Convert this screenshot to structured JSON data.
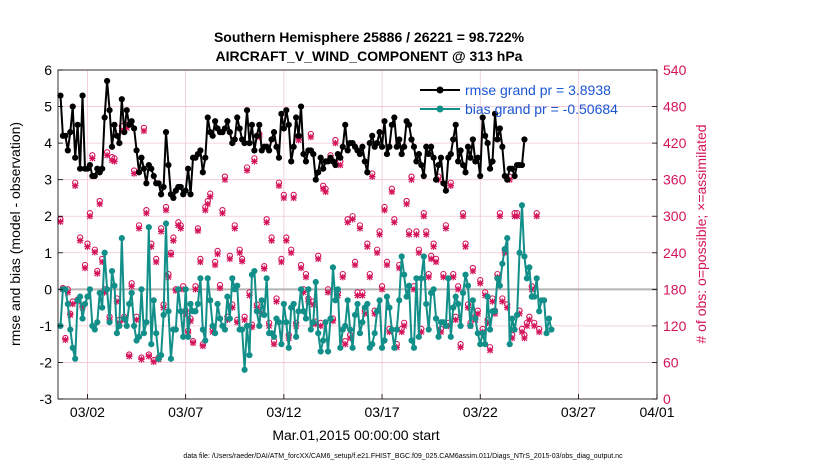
{
  "chart_data": {
    "type": "line",
    "title_line1": "Southern Hemisphere 25886 / 26221 = 98.722%",
    "title_line2": "AIRCRAFT_V_WIND_COMPONENT @ 313 hPa",
    "xlabel": "Mar.01,2015 00:00:00 start",
    "ylabel_left": "rmse and bias (model - observation)",
    "ylabel_right": "# of obs: o=possible; ×=assimilated",
    "footnote": "data file: /Users/raeder/DAI/ATM_forcXX/CAM6_setup/f.e21.FHIST_BGC.f09_025.CAM6assim.011/Diags_NTrS_2015-03/obs_diag_output.nc",
    "x_range": [
      0.5,
      31.0
    ],
    "x_ticks": [
      {
        "value": 2,
        "label": "03/02"
      },
      {
        "value": 7,
        "label": "03/07"
      },
      {
        "value": 12,
        "label": "03/12"
      },
      {
        "value": 17,
        "label": "03/17"
      },
      {
        "value": 22,
        "label": "03/22"
      },
      {
        "value": 27,
        "label": "03/27"
      },
      {
        "value": 31,
        "label": "04/01"
      }
    ],
    "y_left_range": [
      -3,
      6
    ],
    "y_left_ticks": [
      -3,
      -2,
      -1,
      0,
      1,
      2,
      3,
      4,
      5,
      6
    ],
    "y_right_range": [
      0,
      540
    ],
    "y_right_ticks": [
      0,
      60,
      120,
      180,
      240,
      300,
      360,
      420,
      480,
      540
    ],
    "x_step_days": 0.125,
    "x_start": 0.625,
    "legend": [
      {
        "label": "rmse grand pr = 3.8938",
        "color": "#000000"
      },
      {
        "label": "bias grand pr = -0.50684",
        "color": "#138f8a"
      }
    ],
    "colors": {
      "rmse": "#000000",
      "bias": "#138f8a",
      "obs": "#d4145a",
      "zero_line": "#b4b4b4",
      "grid": "#f2c6d6",
      "right_axis": "#d4145a"
    },
    "series": [
      {
        "name": "rmse",
        "values": [
          5.3,
          4.2,
          4.2,
          3.8,
          4.3,
          5.0,
          3.6,
          4.5,
          3.3,
          5.3,
          3.3,
          3.3,
          3.4,
          3.1,
          3.1,
          3.3,
          3.2,
          3.3,
          4.7,
          5.7,
          4.9,
          3.9,
          4.5,
          4.2,
          4.0,
          5.2,
          4.3,
          4.9,
          4.5,
          4.6,
          4.4,
          3.8,
          3.2,
          3.6,
          3.3,
          2.9,
          3.4,
          3.3,
          3.1,
          2.9,
          2.9,
          2.6,
          2.8,
          4.3,
          3.4,
          2.6,
          2.5,
          2.7,
          2.8,
          2.8,
          2.6,
          2.7,
          3.3,
          2.6,
          3.6,
          3.6,
          3.7,
          3.8,
          3.2,
          3.6,
          4.7,
          4.3,
          4.2,
          4.6,
          4.4,
          4.3,
          4.3,
          4.4,
          4.6,
          4.3,
          4.0,
          4.1,
          4.7,
          4.4,
          4.1,
          4.0,
          4.9,
          4.0,
          4.5,
          3.8,
          4.2,
          4.5,
          3.8,
          3.9,
          3.9,
          3.8,
          4.1,
          4.3,
          3.9,
          3.6,
          4.8,
          4.4,
          4.9,
          4.5,
          3.5,
          3.9,
          4.7,
          4.2,
          5.0,
          3.7,
          3.5,
          3.8,
          3.8,
          3.7,
          3.0,
          3.2,
          3.6,
          3.3,
          3.5,
          3.5,
          3.6,
          3.5,
          3.4,
          3.7,
          3.6,
          3.9,
          4.5,
          3.8,
          4.0,
          4.0,
          3.9,
          3.8,
          3.7,
          3.9,
          3.5,
          3.2,
          4.0,
          4.2,
          3.9,
          4.0,
          4.3,
          3.9,
          4.6,
          3.7,
          3.9,
          4.5,
          4.7,
          3.9,
          4.1,
          3.7,
          3.9,
          4.6,
          4.5,
          4.1,
          3.9,
          3.5,
          3.7,
          3.4,
          3.1,
          3.9,
          3.7,
          3.9,
          3.6,
          3.0,
          3.4,
          3.6,
          2.9,
          2.7,
          3.6,
          3.7,
          4.1,
          4.5,
          3.5,
          3.8,
          3.4,
          3.2,
          3.9,
          3.6,
          4.1,
          3.5,
          3.6,
          3.1,
          4.7,
          4.2,
          4.0,
          3.3,
          3.5,
          4.8,
          4.1,
          4.4,
          3.9,
          3.1,
          3.0,
          3.3,
          3.3,
          3.1,
          3.4,
          3.4,
          3.4,
          4.1
        ]
      },
      {
        "name": "bias",
        "values": [
          -1.0,
          0.0,
          0.0,
          -0.4,
          -1.1,
          -1.6,
          -1.9,
          -0.3,
          -0.2,
          -0.8,
          -0.4,
          -0.2,
          0.0,
          -1.0,
          -1.1,
          -0.9,
          -0.1,
          -0.5,
          1.0,
          0.0,
          -0.9,
          0.5,
          0.1,
          -1.2,
          -1.0,
          1.4,
          -0.8,
          -1.0,
          -0.4,
          -0.1,
          -1.0,
          -1.4,
          -1.3,
          0.0,
          -1.2,
          -0.9,
          1.7,
          -1.5,
          -0.3,
          -1.2,
          -1.9,
          -1.8,
          -0.7,
          1.8,
          -0.6,
          -1.9,
          -1.1,
          -1.1,
          0.0,
          -0.6,
          -1.3,
          0.0,
          -1.3,
          -0.4,
          -0.6,
          -0.6,
          -0.4,
          0.3,
          -1.1,
          -1.4,
          0.3,
          -0.3,
          -1.0,
          -1.2,
          -0.4,
          -0.8,
          -1.0,
          -1.1,
          -0.2,
          -0.8,
          0.3,
          0.0,
          0.1,
          -1.1,
          -1.1,
          -2.2,
          -1.0,
          -1.8,
          0.4,
          0.5,
          -0.6,
          -1.0,
          -0.3,
          -0.7,
          0.3,
          -1.2,
          -1.2,
          -1.3,
          -0.8,
          -0.9,
          -1.5,
          -0.4,
          -0.9,
          -1.6,
          -0.5,
          -0.4,
          -1.3,
          -0.6,
          0.0,
          -0.6,
          -0.8,
          0.0,
          -1.1,
          -0.9,
          0.2,
          -1.2,
          -1.7,
          -1.4,
          -0.9,
          -1.7,
          -0.8,
          0.6,
          -0.3,
          0.0,
          -1.6,
          -1.1,
          -1.0,
          -0.3,
          -1.1,
          -1.6,
          -0.7,
          -0.4,
          -1.2,
          -0.9,
          -0.5,
          -0.4,
          -1.6,
          -1.5,
          -1.2,
          -0.6,
          -0.3,
          -1.6,
          -1.4,
          -0.2,
          -0.5,
          -1.1,
          -1.6,
          -1.1,
          -0.3,
          0.9,
          0.4,
          -0.2,
          0.1,
          -1.4,
          -1.6,
          0.3,
          -1.3,
          0.3,
          0.9,
          -0.4,
          -1.1,
          -0.1,
          0.0,
          -0.8,
          -1.3,
          -0.9,
          -0.9,
          -1.0,
          0.3,
          -1.3,
          -0.5,
          -0.2,
          -0.4,
          -1.0,
          -0.1,
          0.4,
          0.1,
          -1.0,
          -0.3,
          -0.8,
          -1.2,
          -1.5,
          -1.2,
          -1.5,
          -0.2,
          -1.1,
          -0.6,
          -0.6,
          0.3,
          0.1,
          0.7,
          1.1,
          1.4,
          -1.5,
          -0.8,
          -1.1,
          -0.7,
          1.0,
          2.3,
          0.9,
          0.3,
          0.6,
          -0.2,
          -0.2,
          0.3,
          -0.6,
          -0.3,
          -0.3,
          -1.2,
          -0.8,
          -1.1
        ]
      },
      {
        "name": "obs_assimilated",
        "values": [
          291,
          180,
          97,
          175,
          138,
          156,
          350,
          160,
          260,
          150,
          215,
          250,
          300,
          395,
          241,
          206,
          320,
          225,
          175,
          400,
          130,
          392,
          390,
          160,
          125,
          440,
          130,
          445,
          70,
          185,
          370,
          130,
          280,
          65,
          440,
          305,
          70,
          250,
          61,
          225,
          65,
          275,
          150,
          310,
          200,
          237,
          260,
          178,
          285,
          280,
          180,
          140,
          108,
          128,
          92,
          180,
          276,
          225,
          87,
          310,
          320,
          332,
          110,
          220,
          238,
          182,
          305,
          360,
          130,
          230,
          150,
          280,
          126,
          240,
          226,
          130,
          375,
          170,
          118,
          390,
          150,
          430,
          140,
          214,
          290,
          120,
          260,
          90,
          160,
          350,
          225,
          330,
          260,
          100,
          240,
          330,
          120,
          425,
          215,
          175,
          200,
          160,
          430,
          155,
          123,
          230,
          120,
          345,
          340,
          175,
          395,
          128,
          420,
          170,
          384,
          200,
          90,
          290,
          100,
          295,
          220,
          170,
          280,
          170,
          140,
          250,
          200,
          365,
          140,
          240,
          270,
          180,
          310,
          220,
          110,
          340,
          290,
          85,
          215,
          110,
          120,
          320,
          270,
          360,
          180,
          270,
          240,
          110,
          300,
          270,
          200,
          230,
          250,
          225,
          360,
          110,
          200,
          280,
          120,
          350,
          200,
          130,
          180,
          85,
          300,
          250,
          150,
          120,
          210,
          130,
          140,
          190,
          110,
          170,
          125,
          80,
          160,
          140,
          200,
          300,
          160,
          240,
          150,
          360,
          100,
          300,
          300,
          140,
          110,
          100,
          120,
          130,
          180,
          120,
          300,
          110
        ]
      },
      {
        "name": "obs_possible",
        "values": [
          295,
          182,
          100,
          180,
          140,
          160,
          355,
          163,
          265,
          153,
          220,
          255,
          305,
          400,
          245,
          210,
          325,
          230,
          180,
          405,
          135,
          397,
          395,
          165,
          130,
          448,
          135,
          450,
          73,
          190,
          375,
          135,
          285,
          68,
          445,
          310,
          73,
          255,
          64,
          230,
          68,
          280,
          155,
          315,
          205,
          240,
          265,
          180,
          290,
          285,
          185,
          145,
          112,
          132,
          95,
          185,
          280,
          230,
          90,
          315,
          325,
          337,
          115,
          225,
          243,
          187,
          310,
          365,
          135,
          235,
          155,
          285,
          130,
          245,
          230,
          135,
          380,
          175,
          122,
          395,
          155,
          435,
          145,
          218,
          295,
          125,
          265,
          95,
          165,
          355,
          230,
          335,
          265,
          105,
          245,
          335,
          125,
          430,
          220,
          180,
          205,
          165,
          435,
          160,
          127,
          235,
          125,
          350,
          345,
          180,
          400,
          132,
          425,
          175,
          390,
          205,
          95,
          295,
          105,
          300,
          225,
          175,
          285,
          175,
          145,
          255,
          205,
          370,
          145,
          245,
          275,
          185,
          315,
          225,
          115,
          345,
          295,
          90,
          220,
          115,
          125,
          325,
          275,
          365,
          185,
          275,
          245,
          115,
          305,
          275,
          205,
          235,
          255,
          230,
          365,
          115,
          205,
          285,
          125,
          355,
          205,
          135,
          185,
          90,
          305,
          255,
          155,
          125,
          215,
          135,
          145,
          195,
          115,
          175,
          130,
          85,
          165,
          145,
          205,
          305,
          165,
          245,
          155,
          365,
          105,
          305,
          305,
          145,
          115,
          105,
          125,
          135,
          185,
          125,
          305,
          115
        ]
      }
    ]
  }
}
